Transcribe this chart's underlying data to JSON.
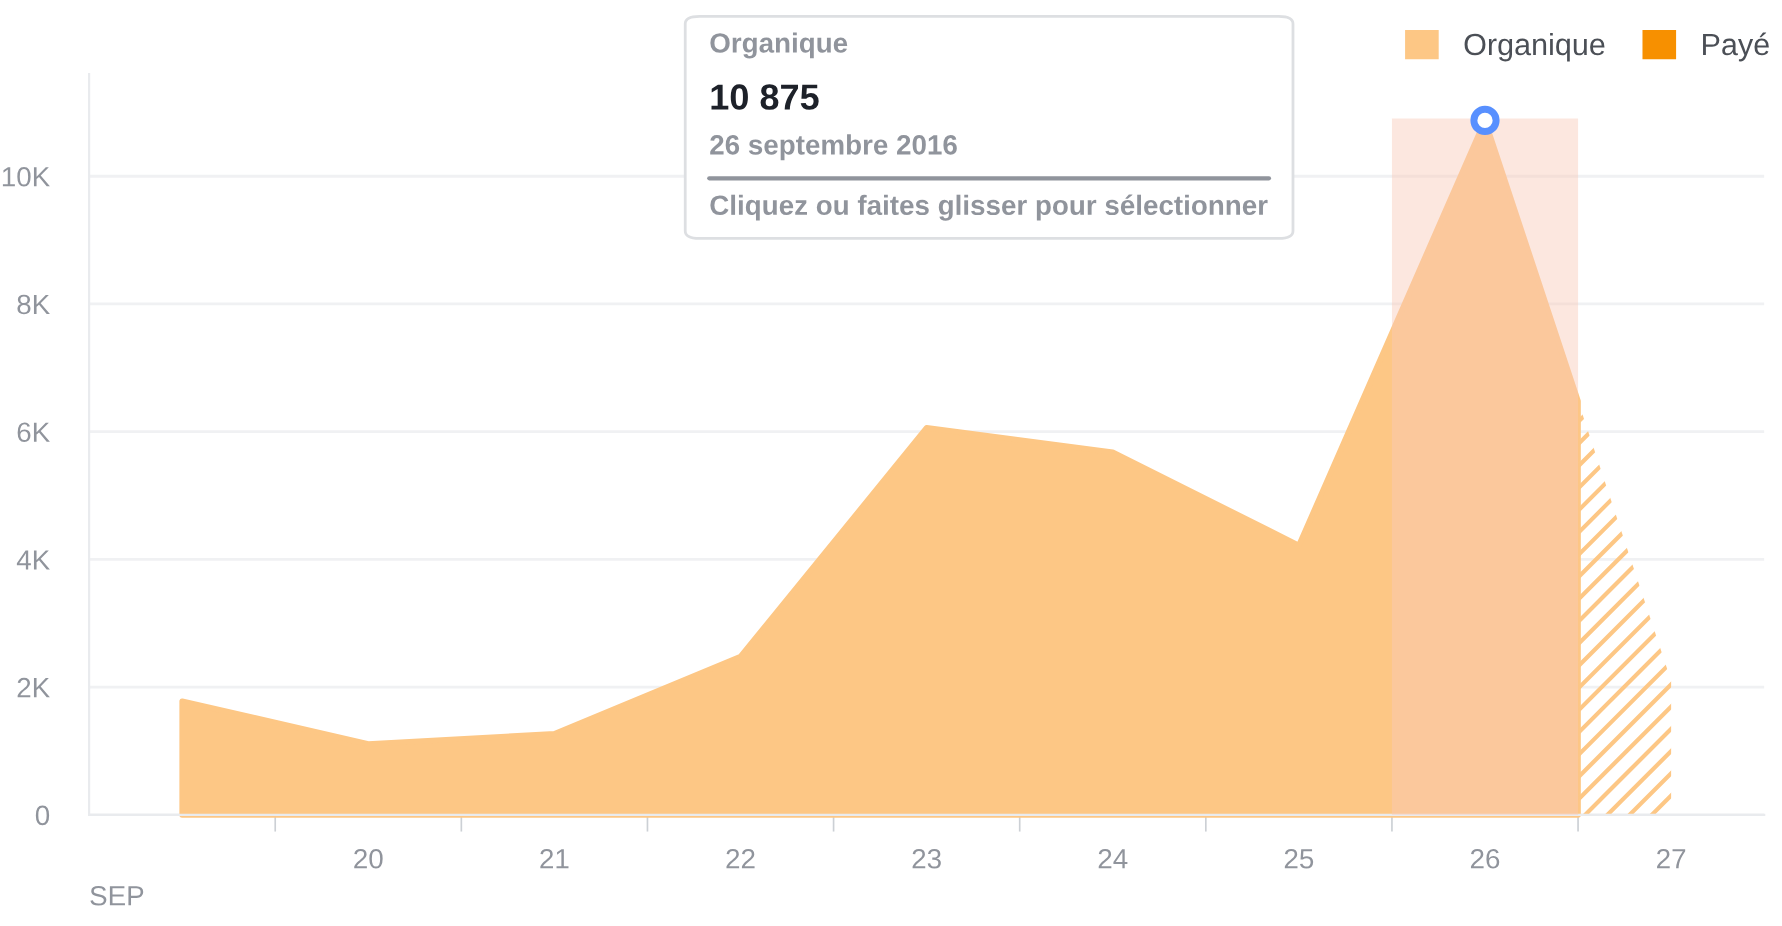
{
  "chart_data": {
    "type": "area",
    "xlabel": "SEP",
    "x": [
      19,
      20,
      21,
      22,
      23,
      24,
      25,
      26,
      26.5
    ],
    "series": [
      {
        "name": "Organique",
        "color": "#fdc785",
        "values": [
          1780,
          1110,
          1270,
          2480,
          6060,
          5680,
          4220,
          10875,
          6480
        ]
      },
      {
        "color": "#fdc785",
        "x": [
          26.5,
          27
        ],
        "values": [
          6480,
          2100
        ]
      },
      {
        "name": "Payé",
        "color": "#f79000",
        "values": [
          null,
          null,
          null,
          null,
          null,
          null,
          null,
          null,
          null
        ]
      }
    ],
    "xlim": [
      18.5,
      27.5
    ],
    "xticks": [
      {
        "value": 19.5,
        "label": null
      },
      {
        "value": 20,
        "label": "20"
      },
      {
        "value": 20.5,
        "label": null
      },
      {
        "value": 21,
        "label": "21"
      },
      {
        "value": 21.5,
        "label": null
      },
      {
        "value": 22,
        "label": "22"
      },
      {
        "value": 22.5,
        "label": null
      },
      {
        "value": 23,
        "label": "23"
      },
      {
        "value": 23.5,
        "label": null
      },
      {
        "value": 24,
        "label": "24"
      },
      {
        "value": 24.5,
        "label": null
      },
      {
        "value": 25,
        "label": "25"
      },
      {
        "value": 25.5,
        "label": null
      },
      {
        "value": 26,
        "label": "26"
      },
      {
        "value": 26.5,
        "label": null
      },
      {
        "value": 27,
        "label": "27"
      }
    ],
    "ylim": [
      0,
      11600
    ],
    "yticks": [
      0,
      {
        "value": 2000,
        "label": "2K"
      },
      {
        "value": 4000,
        "label": "4K"
      },
      {
        "value": 6000,
        "label": "6K"
      },
      {
        "value": 8000,
        "label": "8K"
      },
      {
        "value": 10000,
        "label": "10K"
      }
    ],
    "grid": "y",
    "legend": "top right",
    "bands": [
      {
        "axis": "x",
        "from": 25.5,
        "to": 26.5,
        "color": "#f9c9b8"
      }
    ],
    "annotations": [
      "Organique",
      "10 875",
      "26 septembre 2016",
      "Cliquez ou faites glisser pour sélectionner"
    ]
  }
}
